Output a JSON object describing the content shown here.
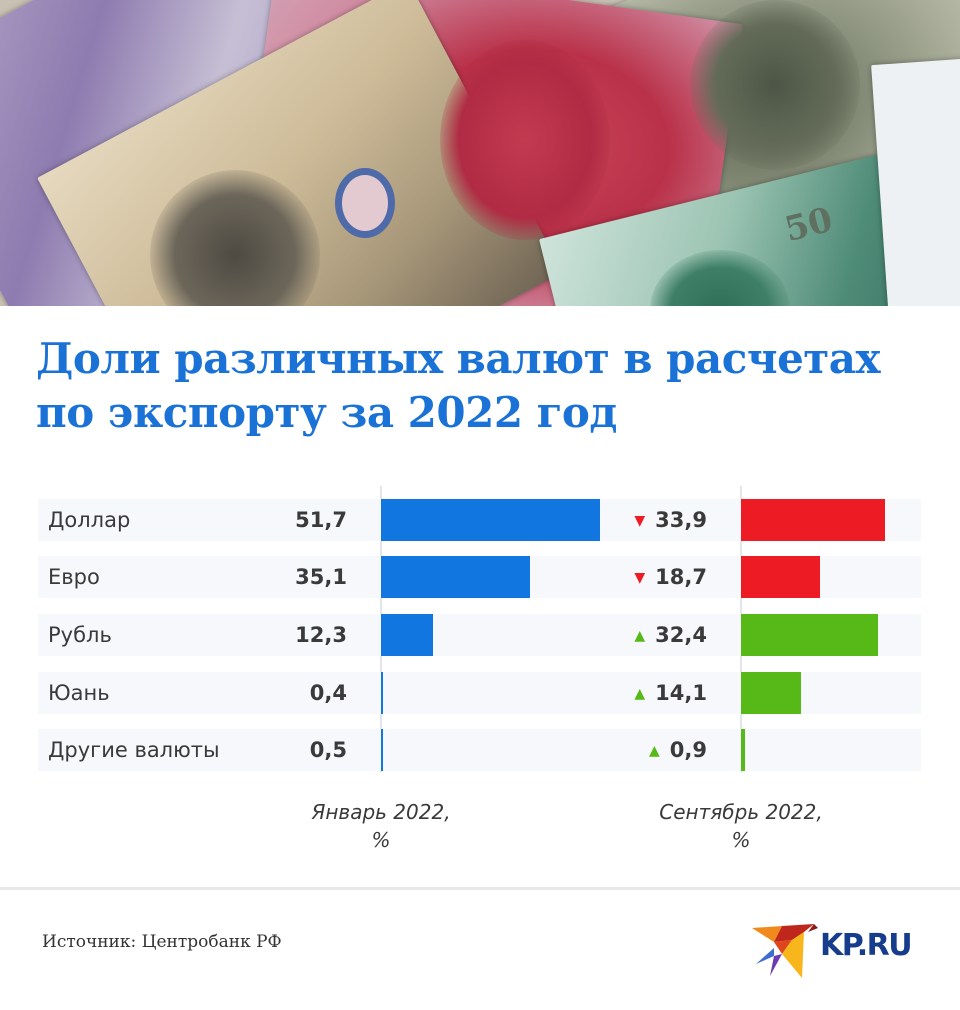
{
  "header_image": {
    "description": "Chinese yuan banknotes"
  },
  "title": {
    "line1": "Доли различных валют в расчетах",
    "line2": "по экспорту за 2022 год"
  },
  "colors": {
    "title": "#1a72d6",
    "bar_january": "#1176e0",
    "decrease": "#ed1c24",
    "increase": "#56b918",
    "row_bg": "#f6f8fb",
    "axis": "#e3e5e8"
  },
  "columns": {
    "january": {
      "line1": "Январь 2022,",
      "line2": "%"
    },
    "september": {
      "line1": "Сентябрь 2022,",
      "line2": "%"
    }
  },
  "rows": [
    {
      "label": "Доллар",
      "jan": "51,7",
      "sep": "33,9",
      "trend": "down",
      "arrow": "▼"
    },
    {
      "label": "Евро",
      "jan": "35,1",
      "sep": "18,7",
      "trend": "down",
      "arrow": "▼"
    },
    {
      "label": "Рубль",
      "jan": "12,3",
      "sep": "32,4",
      "trend": "up",
      "arrow": "▲"
    },
    {
      "label": "Юань",
      "jan": "0,4",
      "sep": "14,1",
      "trend": "up",
      "arrow": "▲"
    },
    {
      "label": "Другие валюты",
      "jan": "0,5",
      "sep": "0,9",
      "trend": "up",
      "arrow": "▲"
    }
  ],
  "footer": {
    "source": "Источник: Центробанк РФ",
    "logo_text": "KP.RU"
  },
  "chart_data": {
    "type": "bar",
    "orientation": "horizontal",
    "title": "Доли различных валют в расчетах по экспорту за 2022 год",
    "categories": [
      "Доллар",
      "Евро",
      "Рубль",
      "Юань",
      "Другие валюты"
    ],
    "series": [
      {
        "name": "Январь 2022, %",
        "values": [
          51.7,
          35.1,
          12.3,
          0.4,
          0.5
        ],
        "color": "#1176e0"
      },
      {
        "name": "Сентябрь 2022, %",
        "values": [
          33.9,
          18.7,
          32.4,
          14.1,
          0.9
        ],
        "colors": [
          "#ed1c24",
          "#ed1c24",
          "#56b918",
          "#56b918",
          "#56b918"
        ],
        "trend": [
          "down",
          "down",
          "up",
          "up",
          "up"
        ]
      }
    ],
    "xlabel": "%",
    "ylabel": "",
    "grid": false,
    "legend": "column captions below bars",
    "source": "Источник: Центробанк РФ"
  }
}
